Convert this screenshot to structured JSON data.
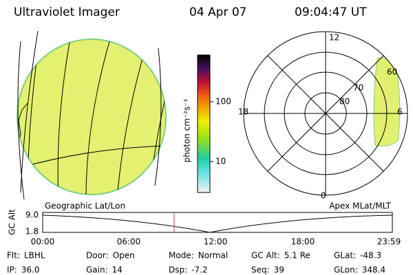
{
  "header": {
    "title": "Ultraviolet Imager",
    "date": "04 Apr 07",
    "time": "09:04:47 UT"
  },
  "colorbar": {
    "label": "photon cm⁻²s⁻¹",
    "ticks": [
      "100",
      "10"
    ]
  },
  "polar": {
    "labels": [
      "12",
      "18",
      "6",
      "0",
      "60",
      "70",
      "80"
    ]
  },
  "timeline": {
    "left_title": "Geographic Lat/Lon",
    "right_title": "Apex MLat/MLT",
    "y_label": "GC Alt",
    "y_ticks": [
      "9.0",
      "1.8"
    ],
    "x_ticks": [
      "00:00",
      "06:00",
      "12:00",
      "18:00",
      "23:59"
    ]
  },
  "status": [
    [
      {
        "label": "Flt:",
        "value": "LBHL"
      },
      {
        "label": "Door:",
        "value": "Open"
      },
      {
        "label": "Mode:",
        "value": "Normal"
      },
      {
        "label": "GC Alt:",
        "value": "5.1 Re"
      },
      {
        "label": "GLat:",
        "value": "-48.3"
      }
    ],
    [
      {
        "label": "IP:",
        "value": "36.0"
      },
      {
        "label": "Gain:",
        "value": "14"
      },
      {
        "label": "Dsp:",
        "value": "-7.2"
      },
      {
        "label": "Seq:",
        "value": "39"
      },
      {
        "label": "GLon:",
        "value": "348.4"
      }
    ]
  ]
}
